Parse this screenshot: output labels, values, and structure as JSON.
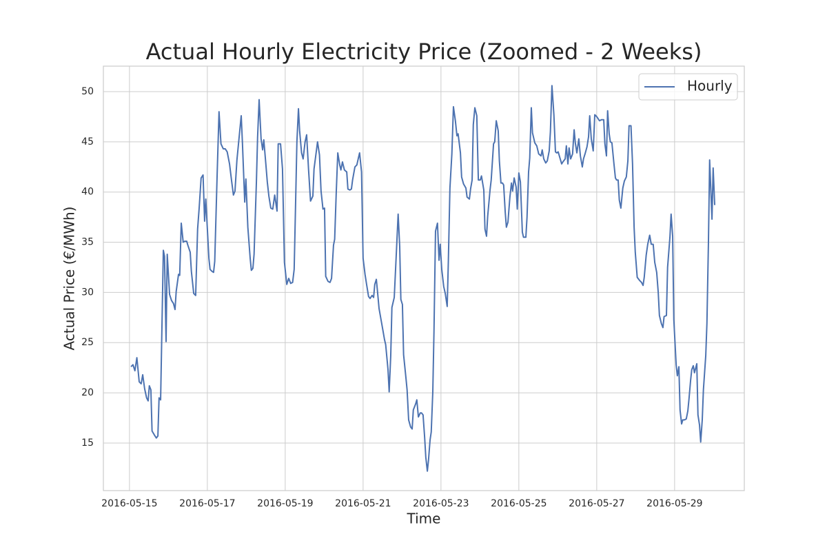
{
  "chart_data": {
    "type": "line",
    "title": "Actual Hourly Electricity Price (Zoomed - 2 Weeks)",
    "xlabel": "Time",
    "ylabel": "Actual Price (€/MWh)",
    "grid": true,
    "legend": "upper right",
    "xlim": [
      -0.67,
      15.79
    ],
    "ylim": [
      10.26,
      52.54
    ],
    "xticks": [
      {
        "value": 0,
        "label": "2016-05-15"
      },
      {
        "value": 2,
        "label": "2016-05-17"
      },
      {
        "value": 4,
        "label": "2016-05-19"
      },
      {
        "value": 6,
        "label": "2016-05-21"
      },
      {
        "value": 8,
        "label": "2016-05-23"
      },
      {
        "value": 10,
        "label": "2016-05-25"
      },
      {
        "value": 12,
        "label": "2016-05-27"
      },
      {
        "value": 14,
        "label": "2016-05-29"
      }
    ],
    "yticks": [
      15,
      20,
      25,
      30,
      35,
      40,
      45,
      50
    ],
    "x": [
      0.04,
      0.09,
      0.14,
      0.19,
      0.25,
      0.3,
      0.34,
      0.39,
      0.44,
      0.48,
      0.51,
      0.55,
      0.58,
      0.64,
      0.69,
      0.73,
      0.76,
      0.8,
      0.87,
      0.9,
      0.94,
      0.97,
      1.03,
      1.08,
      1.13,
      1.17,
      1.2,
      1.26,
      1.29,
      1.33,
      1.38,
      1.42,
      1.47,
      1.5,
      1.56,
      1.59,
      1.65,
      1.7,
      1.75,
      1.79,
      1.84,
      1.89,
      1.93,
      1.96,
      2.04,
      2.07,
      2.12,
      2.16,
      2.19,
      2.25,
      2.3,
      2.35,
      2.41,
      2.46,
      2.51,
      2.57,
      2.62,
      2.67,
      2.71,
      2.76,
      2.81,
      2.87,
      2.9,
      2.96,
      2.99,
      3.04,
      3.1,
      3.13,
      3.17,
      3.2,
      3.26,
      3.29,
      3.33,
      3.38,
      3.42,
      3.45,
      3.5,
      3.54,
      3.58,
      3.63,
      3.68,
      3.73,
      3.79,
      3.82,
      3.88,
      3.93,
      3.98,
      4.04,
      4.09,
      4.14,
      4.19,
      4.23,
      4.27,
      4.3,
      4.34,
      4.37,
      4.42,
      4.46,
      4.51,
      4.55,
      4.6,
      4.65,
      4.71,
      4.74,
      4.78,
      4.83,
      4.88,
      4.92,
      4.97,
      5.01,
      5.04,
      5.1,
      5.15,
      5.19,
      5.24,
      5.27,
      5.31,
      5.35,
      5.4,
      5.43,
      5.47,
      5.52,
      5.58,
      5.61,
      5.66,
      5.7,
      5.73,
      5.79,
      5.84,
      5.88,
      5.91,
      5.96,
      6.0,
      6.05,
      6.09,
      6.14,
      6.18,
      6.23,
      6.27,
      6.3,
      6.34,
      6.37,
      6.41,
      6.46,
      6.51,
      6.55,
      6.58,
      6.64,
      6.67,
      6.71,
      6.74,
      6.8,
      6.85,
      6.9,
      6.94,
      6.97,
      7.01,
      7.04,
      7.1,
      7.13,
      7.17,
      7.22,
      7.26,
      7.29,
      7.35,
      7.38,
      7.42,
      7.47,
      7.5,
      7.54,
      7.58,
      7.61,
      7.65,
      7.68,
      7.72,
      7.75,
      7.79,
      7.82,
      7.86,
      7.91,
      7.95,
      7.98,
      8.02,
      8.07,
      8.11,
      8.16,
      8.19,
      8.23,
      8.28,
      8.32,
      8.37,
      8.41,
      8.44,
      8.5,
      8.53,
      8.58,
      8.64,
      8.67,
      8.73,
      8.76,
      8.8,
      8.83,
      8.87,
      8.92,
      8.96,
      9.01,
      9.04,
      9.1,
      9.13,
      9.17,
      9.2,
      9.26,
      9.29,
      9.35,
      9.38,
      9.42,
      9.47,
      9.5,
      9.54,
      9.58,
      9.61,
      9.65,
      9.68,
      9.72,
      9.77,
      9.81,
      9.84,
      9.88,
      9.93,
      9.96,
      10.0,
      10.04,
      10.09,
      10.12,
      10.18,
      10.21,
      10.25,
      10.28,
      10.32,
      10.35,
      10.41,
      10.46,
      10.51,
      10.57,
      10.6,
      10.64,
      10.69,
      10.73,
      10.78,
      10.81,
      10.85,
      10.9,
      10.94,
      10.97,
      11.01,
      11.04,
      11.1,
      11.13,
      11.19,
      11.22,
      11.26,
      11.29,
      11.33,
      11.38,
      11.42,
      11.45,
      11.49,
      11.54,
      11.58,
      11.63,
      11.66,
      11.7,
      11.75,
      11.79,
      11.82,
      11.86,
      11.91,
      11.95,
      11.98,
      12.02,
      12.07,
      12.12,
      12.18,
      12.21,
      12.25,
      12.28,
      12.32,
      12.35,
      12.39,
      12.44,
      12.48,
      12.51,
      12.55,
      12.58,
      12.62,
      12.67,
      12.71,
      12.76,
      12.8,
      12.83,
      12.88,
      12.92,
      12.96,
      12.99,
      13.04,
      13.1,
      13.15,
      13.19,
      13.22,
      13.27,
      13.31,
      13.36,
      13.4,
      13.45,
      13.49,
      13.54,
      13.58,
      13.61,
      13.66,
      13.7,
      13.73,
      13.79,
      13.82,
      13.88,
      13.91,
      13.95,
      13.98,
      14.04,
      14.07,
      14.11,
      14.14,
      14.18,
      14.21,
      14.25,
      14.3,
      14.34,
      14.37,
      14.41,
      14.44,
      14.48,
      14.51,
      14.57,
      14.6,
      14.64,
      14.67,
      14.71,
      14.74,
      14.8,
      14.83,
      14.87,
      14.9,
      14.96,
      14.99,
      15.03
    ],
    "series": [
      {
        "name": "Hourly",
        "color": "#4c72b0",
        "values": [
          22.6,
          22.8,
          22.2,
          23.5,
          21.1,
          20.9,
          21.8,
          20.4,
          19.5,
          19.2,
          20.7,
          20.3,
          16.2,
          15.8,
          15.5,
          15.7,
          19.5,
          19.3,
          34.2,
          33.6,
          25.1,
          33.8,
          29.8,
          29.2,
          28.9,
          28.3,
          30.1,
          31.8,
          31.7,
          36.9,
          35.0,
          35.1,
          35.1,
          34.7,
          34.0,
          32.1,
          29.9,
          29.7,
          36.3,
          38.4,
          41.4,
          41.7,
          37.1,
          39.3,
          33.4,
          32.3,
          32.1,
          32.0,
          33.1,
          41.5,
          48.0,
          44.8,
          44.3,
          44.3,
          44.0,
          42.8,
          41.2,
          39.7,
          40.1,
          43.2,
          45.2,
          47.6,
          45.0,
          39.0,
          41.3,
          36.5,
          33.4,
          32.2,
          32.4,
          33.8,
          41.0,
          45.4,
          49.2,
          45.3,
          44.2,
          45.2,
          42.9,
          41.0,
          39.6,
          38.4,
          38.3,
          39.7,
          38.1,
          44.8,
          44.8,
          42.3,
          33.0,
          30.8,
          31.4,
          30.9,
          31.0,
          32.3,
          39.5,
          45.0,
          48.3,
          46.1,
          43.9,
          43.3,
          45.0,
          45.7,
          42.2,
          39.1,
          39.6,
          42.3,
          43.5,
          45.0,
          43.7,
          40.1,
          38.3,
          38.4,
          31.6,
          31.1,
          31.0,
          31.4,
          34.7,
          35.3,
          39.9,
          43.9,
          42.7,
          42.2,
          43.0,
          42.2,
          42.0,
          40.3,
          40.2,
          40.3,
          41.2,
          42.5,
          42.7,
          43.4,
          43.9,
          42.0,
          33.4,
          31.8,
          30.8,
          29.6,
          29.4,
          29.7,
          29.5,
          30.8,
          31.3,
          30.1,
          28.4,
          27.3,
          26.2,
          25.3,
          24.8,
          22.3,
          20.1,
          23.7,
          28.5,
          29.5,
          33.6,
          37.8,
          34.6,
          29.3,
          28.8,
          23.8,
          21.5,
          20.3,
          17.3,
          16.6,
          16.4,
          18.3,
          18.9,
          19.3,
          17.6,
          18.0,
          18.0,
          17.8,
          15.6,
          13.6,
          12.2,
          13.3,
          15.3,
          16.1,
          20.1,
          26.0,
          36.1,
          36.9,
          33.2,
          34.8,
          32.3,
          30.6,
          29.9,
          28.6,
          33.2,
          40.4,
          43.8,
          48.5,
          47.1,
          45.6,
          45.8,
          43.9,
          41.5,
          40.8,
          40.4,
          39.5,
          39.3,
          40.3,
          41.2,
          46.7,
          48.4,
          47.6,
          41.2,
          41.2,
          41.6,
          40.2,
          36.3,
          35.6,
          37.6,
          40.2,
          41.2,
          44.8,
          45.0,
          47.1,
          46.1,
          43.1,
          40.9,
          40.9,
          40.7,
          38.0,
          36.5,
          37.0,
          39.5,
          40.9,
          40.1,
          41.4,
          40.5,
          38.3,
          41.9,
          41.0,
          36.0,
          35.5,
          35.5,
          37.5,
          42.0,
          43.4,
          48.4,
          45.9,
          44.9,
          44.6,
          43.8,
          43.6,
          44.2,
          43.3,
          42.9,
          43.1,
          44.1,
          46.0,
          50.6,
          47.7,
          44.0,
          43.9,
          44.0,
          43.6,
          42.8,
          43.0,
          43.3,
          44.6,
          42.8,
          44.4,
          43.3,
          43.8,
          46.2,
          44.9,
          43.9,
          45.3,
          43.6,
          42.5,
          43.3,
          43.8,
          44.5,
          45.5,
          47.6,
          45.3,
          44.1,
          47.7,
          47.6,
          47.4,
          47.1,
          47.2,
          47.2,
          44.8,
          43.6,
          48.1,
          45.8,
          45.0,
          44.9,
          42.9,
          41.4,
          41.2,
          41.2,
          39.2,
          38.4,
          40.4,
          41.1,
          41.5,
          43.1,
          46.6,
          46.6,
          42.8,
          36.5,
          34.0,
          31.5,
          31.2,
          31.0,
          30.7,
          31.5,
          33.7,
          34.8,
          35.7,
          34.8,
          34.8,
          33.0,
          32.0,
          30.0,
          27.7,
          26.9,
          26.5,
          27.6,
          27.7,
          32.5,
          35.5,
          37.8,
          35.6,
          27.3,
          22.8,
          21.7,
          22.6,
          18.3,
          16.9,
          17.3,
          17.3,
          17.4,
          18.2,
          19.4,
          21.2,
          22.3,
          22.7,
          22.0,
          22.9,
          17.8,
          16.8,
          15.1,
          17.3,
          20.3,
          23.7,
          26.9,
          35.2,
          43.2,
          37.3,
          42.4,
          38.7
        ]
      }
    ]
  }
}
